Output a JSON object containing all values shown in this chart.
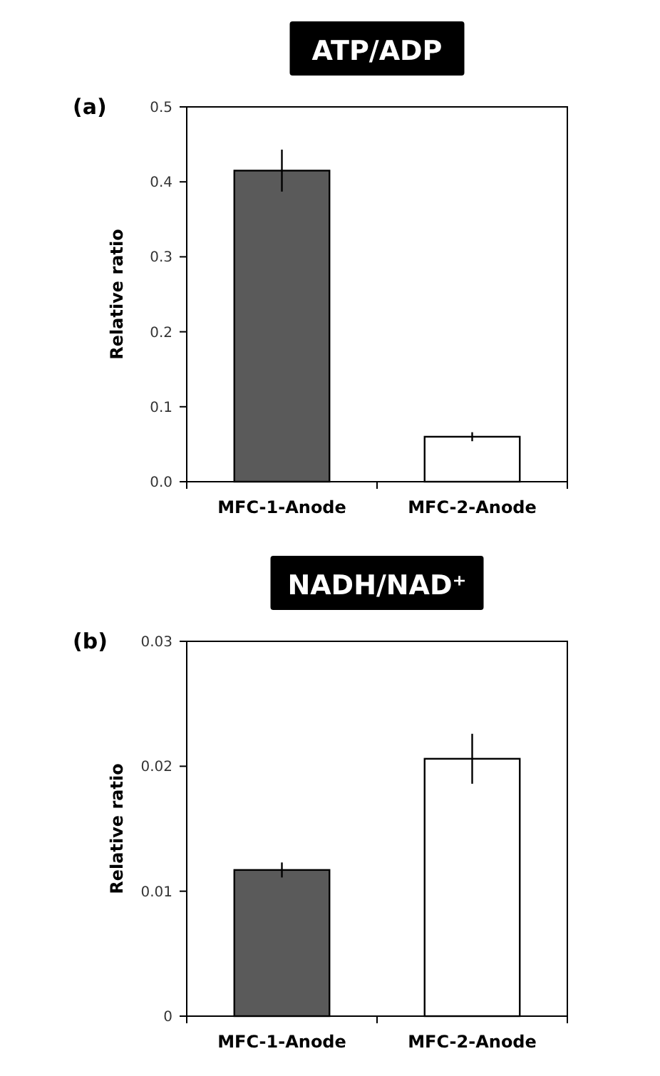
{
  "chart_data": [
    {
      "type": "bar",
      "title": "ATP/ADP",
      "ylabel": "Relative ratio",
      "annotations": [
        "(a)"
      ],
      "categories": [
        "MFC-1-Anode",
        "MFC-2-Anode"
      ],
      "values": [
        0.415,
        0.06
      ],
      "colors": [
        "#5a5a5a",
        "#ffffff"
      ],
      "errors": [
        0.028,
        0.006
      ],
      "ylim": [
        0,
        0.5
      ],
      "yticks": [
        {
          "value": 0,
          "label": "0.0"
        },
        {
          "value": 0.1,
          "label": "0.1"
        },
        {
          "value": 0.2,
          "label": "0.2"
        },
        {
          "value": 0.3,
          "label": "0.3"
        },
        {
          "value": 0.4,
          "label": "0.4"
        },
        {
          "value": 0.5,
          "label": "0.5"
        }
      ],
      "grid": false
    },
    {
      "type": "bar",
      "title": "NADH/NAD⁺",
      "ylabel": "Relative ratio",
      "annotations": [
        "(b)"
      ],
      "categories": [
        "MFC-1-Anode",
        "MFC-2-Anode"
      ],
      "values": [
        0.0117,
        0.0206
      ],
      "colors": [
        "#5a5a5a",
        "#ffffff"
      ],
      "errors": [
        0.0006,
        0.002
      ],
      "ylim": [
        0,
        0.03
      ],
      "yticks": [
        0,
        0.01,
        0.02,
        0.03
      ],
      "grid": false
    }
  ]
}
